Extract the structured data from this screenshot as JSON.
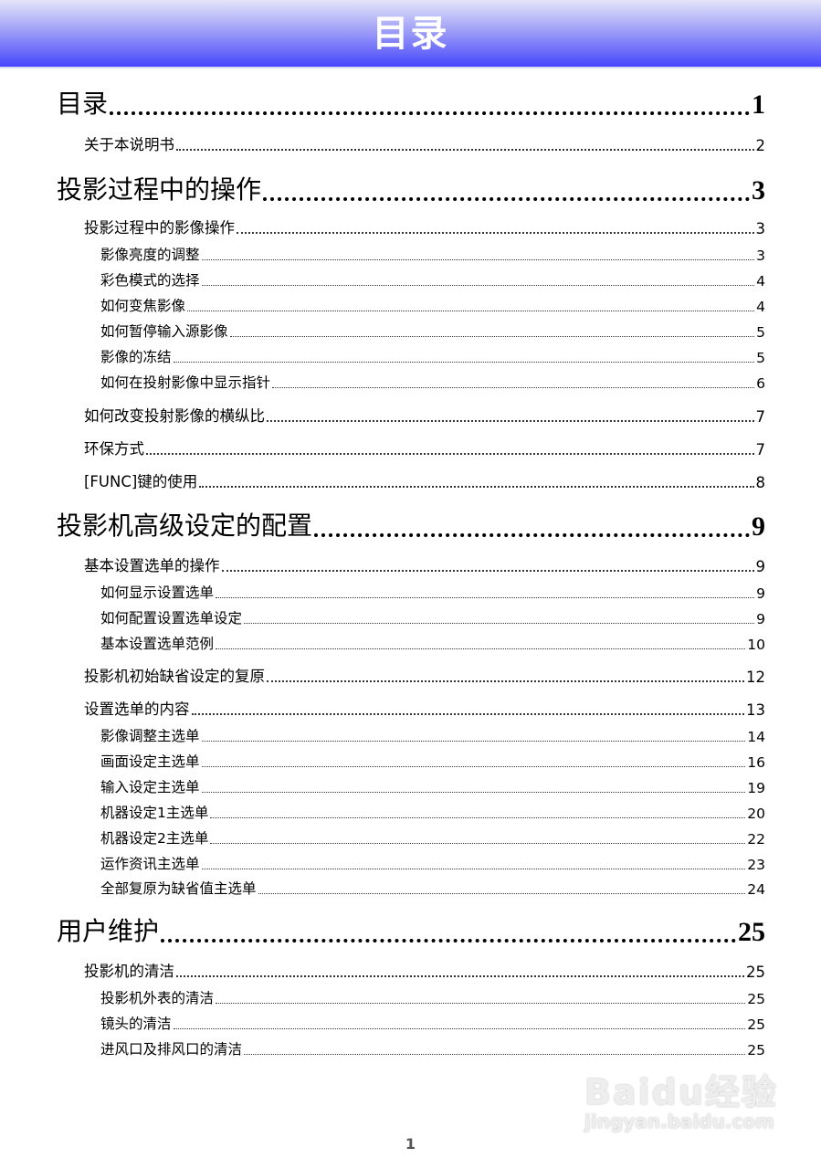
{
  "header": {
    "title": "目录"
  },
  "toc": [
    {
      "level": 1,
      "label": "目录",
      "page": "1"
    },
    {
      "level": 2,
      "label": "关于本说明书",
      "page": "2"
    },
    {
      "level": 1,
      "label": "投影过程中的操作",
      "page": "3"
    },
    {
      "level": 2,
      "label": "投影过程中的影像操作",
      "page": "3"
    },
    {
      "level": 3,
      "label": "影像亮度的调整",
      "page": "3"
    },
    {
      "level": 3,
      "label": "彩色模式的选择",
      "page": "4"
    },
    {
      "level": 3,
      "label": "如何变焦影像",
      "page": "4"
    },
    {
      "level": 3,
      "label": "如何暂停输入源影像",
      "page": "5"
    },
    {
      "level": 3,
      "label": "影像的冻结",
      "page": "5"
    },
    {
      "level": 3,
      "label": "如何在投射影像中显示指针",
      "page": "6"
    },
    {
      "level": 2,
      "label": "如何改变投射影像的横纵比",
      "page": "7"
    },
    {
      "level": 2,
      "label": "环保方式",
      "page": "7"
    },
    {
      "level": 2,
      "label": "[FUNC]键的使用",
      "page": "8"
    },
    {
      "level": 1,
      "label": "投影机高级设定的配置",
      "page": "9"
    },
    {
      "level": 2,
      "label": "基本设置选单的操作",
      "page": "9"
    },
    {
      "level": 3,
      "label": "如何显示设置选单",
      "page": "9"
    },
    {
      "level": 3,
      "label": "如何配置设置选单设定",
      "page": "9"
    },
    {
      "level": 3,
      "label": "基本设置选单范例",
      "page": "10"
    },
    {
      "level": 2,
      "label": "投影机初始缺省设定的复原",
      "page": "12"
    },
    {
      "level": 2,
      "label": "设置选单的内容",
      "page": "13"
    },
    {
      "level": 3,
      "label": "影像调整主选单",
      "page": "14"
    },
    {
      "level": 3,
      "label": "画面设定主选单",
      "page": "16"
    },
    {
      "level": 3,
      "label": "输入设定主选单",
      "page": "19"
    },
    {
      "level": 3,
      "label": "机器设定1主选单",
      "page": "20"
    },
    {
      "level": 3,
      "label": "机器设定2主选单",
      "page": "22"
    },
    {
      "level": 3,
      "label": "运作资讯主选单",
      "page": "23"
    },
    {
      "level": 3,
      "label": "全部复原为缺省值主选单",
      "page": "24"
    },
    {
      "level": 1,
      "label": "用户维护",
      "page": "25"
    },
    {
      "level": 2,
      "label": "投影机的清洁",
      "page": "25"
    },
    {
      "level": 3,
      "label": "投影机外表的清洁",
      "page": "25"
    },
    {
      "level": 3,
      "label": "镜头的清洁",
      "page": "25"
    },
    {
      "level": 3,
      "label": "进风口及排风口的清洁",
      "page": "25"
    }
  ],
  "footer": {
    "page_number": "1"
  },
  "watermark": {
    "logo": "Baidu经验",
    "url": "jingyan.baidu.com"
  }
}
